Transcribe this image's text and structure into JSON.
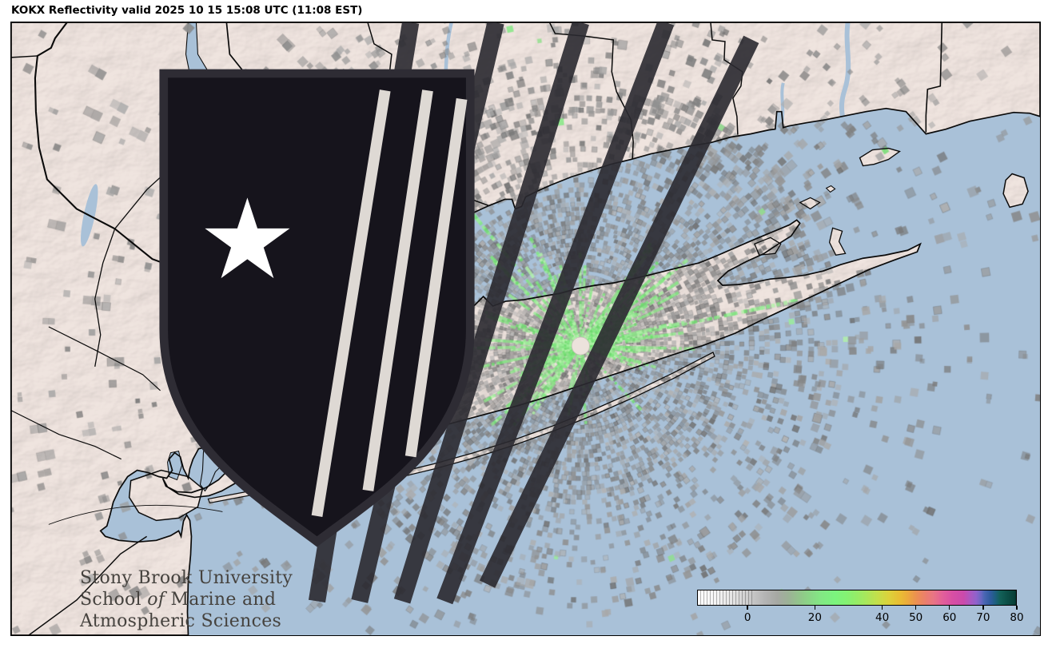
{
  "title": "KOKX Reflectivity valid 2025 10 15 15:08 UTC (11:08 EST)",
  "logo": {
    "line1": "Stony Brook University",
    "line2_pre": "School ",
    "line2_italic": "of",
    "line2_post": " Marine and",
    "line3": "Atmospheric Sciences"
  },
  "colorbar": {
    "min": -15,
    "max": 80,
    "tick_values": [
      0,
      20,
      40,
      50,
      60,
      70,
      80
    ],
    "tick_labels": [
      "0",
      "20",
      "40",
      "50",
      "60",
      "70",
      "80"
    ],
    "stops": [
      [
        0,
        "#ffffff"
      ],
      [
        0.06,
        "#f4f4f4"
      ],
      [
        0.11,
        "#e4e4e4"
      ],
      [
        0.158,
        "#cdcdcd"
      ],
      [
        0.21,
        "#b4b4b4"
      ],
      [
        0.25,
        "#a6a8a3"
      ],
      [
        0.285,
        "#9cb296"
      ],
      [
        0.33,
        "#8fcb88"
      ],
      [
        0.385,
        "#83e784"
      ],
      [
        0.43,
        "#7bf47e"
      ],
      [
        0.47,
        "#85f172"
      ],
      [
        0.52,
        "#a2e95f"
      ],
      [
        0.565,
        "#c4df4a"
      ],
      [
        0.6,
        "#dcd23b"
      ],
      [
        0.635,
        "#e9bd33"
      ],
      [
        0.66,
        "#ecaa3c"
      ],
      [
        0.685,
        "#ec9150"
      ],
      [
        0.715,
        "#eb7f6c"
      ],
      [
        0.74,
        "#e97584"
      ],
      [
        0.77,
        "#e25f9a"
      ],
      [
        0.8,
        "#d84fa4"
      ],
      [
        0.835,
        "#cb4aab"
      ],
      [
        0.855,
        "#ad57c0"
      ],
      [
        0.875,
        "#8f62cb"
      ],
      [
        0.89,
        "#6a67c2"
      ],
      [
        0.9,
        "#4a66b4"
      ],
      [
        0.92,
        "#2f5b9e"
      ],
      [
        0.935,
        "#1d5f80"
      ],
      [
        0.95,
        "#136058"
      ],
      [
        0.97,
        "#0d5149"
      ],
      [
        0.995,
        "#084038"
      ],
      [
        1,
        "#05332c"
      ]
    ]
  },
  "colors": {
    "water": "#a9c1d8",
    "land": "#ece2dd",
    "frame": "#000000",
    "clutter_gray": "#8f8f8f",
    "clutter_green": "#7fe87f",
    "logo_text": "#45423e",
    "shield": "#16141c"
  }
}
